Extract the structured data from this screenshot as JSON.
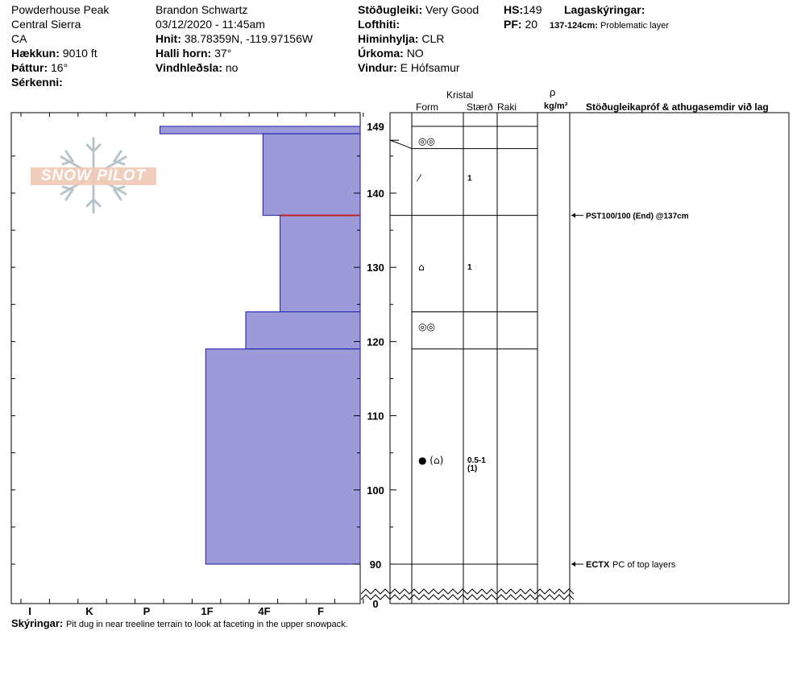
{
  "header": {
    "location": "Powderhouse Peak",
    "range": "Central Sierra",
    "state": "CA",
    "elevation_label": "Hækkun:",
    "elevation_value": "9010 ft",
    "aspect_label": "Þáttur:",
    "aspect_value": "16°",
    "features_label": "Sérkenni:",
    "features_value": "",
    "observer": "Brandon Schwartz",
    "datetime": "03/12/2020 - 11:45am",
    "coords_label": "Hnit:",
    "coords_value": "38.78359N, -119.97156W",
    "slope_label": "Halli horn:",
    "slope_value": "37°",
    "wind_loading_label": "Vindhleðsla:",
    "wind_loading_value": "no",
    "stability_label": "Stöðugleiki:",
    "stability_value": "Very Good",
    "air_temp_label": "Lofthiti:",
    "air_temp_value": "",
    "sky_label": "Himinhylja:",
    "sky_value": "CLR",
    "precip_label": "Úrkoma:",
    "precip_value": "NO",
    "wind_label": "Vindur:",
    "wind_value": "E Hófsamur",
    "hs_label": "HS:",
    "hs_value": "149",
    "pf_label": "PF:",
    "pf_value": "20",
    "layer_notes_label": "Lagaskýringar:",
    "layer_notes_range": "137-124cm:",
    "layer_notes_value": "Problematic layer"
  },
  "columns": {
    "kristal": "Kristal",
    "form": "Form",
    "size": "Stærð",
    "moisture": "Raki",
    "density_symbol": "ρ",
    "density_unit": "kg/m³",
    "tests": "Stöðugleikapróf & athugasemdir við lag"
  },
  "chart_data": {
    "type": "bar",
    "orientation": "horizontal",
    "description_free": true,
    "y_axis": {
      "range": [
        0,
        149
      ],
      "break_below": 90,
      "ticks": [
        90,
        100,
        110,
        120,
        130,
        140,
        149,
        0
      ]
    },
    "x_axis": {
      "categories": [
        "I",
        "K",
        "P",
        "1F",
        "4F",
        "F"
      ]
    },
    "hardness_layers": [
      {
        "top": 149,
        "bottom": 148,
        "hardness_level": 3.5
      },
      {
        "top": 148,
        "bottom": 137,
        "hardness_level": 1.7
      },
      {
        "top": 137,
        "bottom": 124,
        "hardness_level": 1.4
      },
      {
        "top": 124,
        "bottom": 119,
        "hardness_level": 2.0
      },
      {
        "top": 119,
        "bottom": 90,
        "hardness_level": 2.7
      }
    ],
    "problem_layer_line": 137,
    "layer_boundaries": [
      149,
      148,
      146,
      137,
      124,
      119,
      90
    ],
    "crystals": [
      {
        "depth": 147,
        "form": "◎◎",
        "size": ""
      },
      {
        "depth": 142,
        "form": "⁄",
        "size": "1"
      },
      {
        "depth": 130,
        "form": "⌂",
        "size": "1"
      },
      {
        "depth": 122,
        "form": "◎◎",
        "size": ""
      },
      {
        "depth": 104,
        "form": "● (⌂)",
        "size": "0.5-1",
        "size2": "(1)"
      }
    ],
    "tests": [
      {
        "depth": 137,
        "text": "PST100/100 (End) @137cm"
      },
      {
        "depth": 90,
        "code": "ECTX",
        "text": "PC of top layers"
      }
    ]
  },
  "comments_label": "Skýringar:",
  "comments_value": "Pit dug in near treeline terrain to look at faceting in the upper snowpack.",
  "logo_text": "SNOW PILOT",
  "colors": {
    "bar": "#9c9ad8",
    "bar_stroke": "#1a1aa8",
    "problem": "#c02020",
    "logo": "#e8b8a0"
  }
}
